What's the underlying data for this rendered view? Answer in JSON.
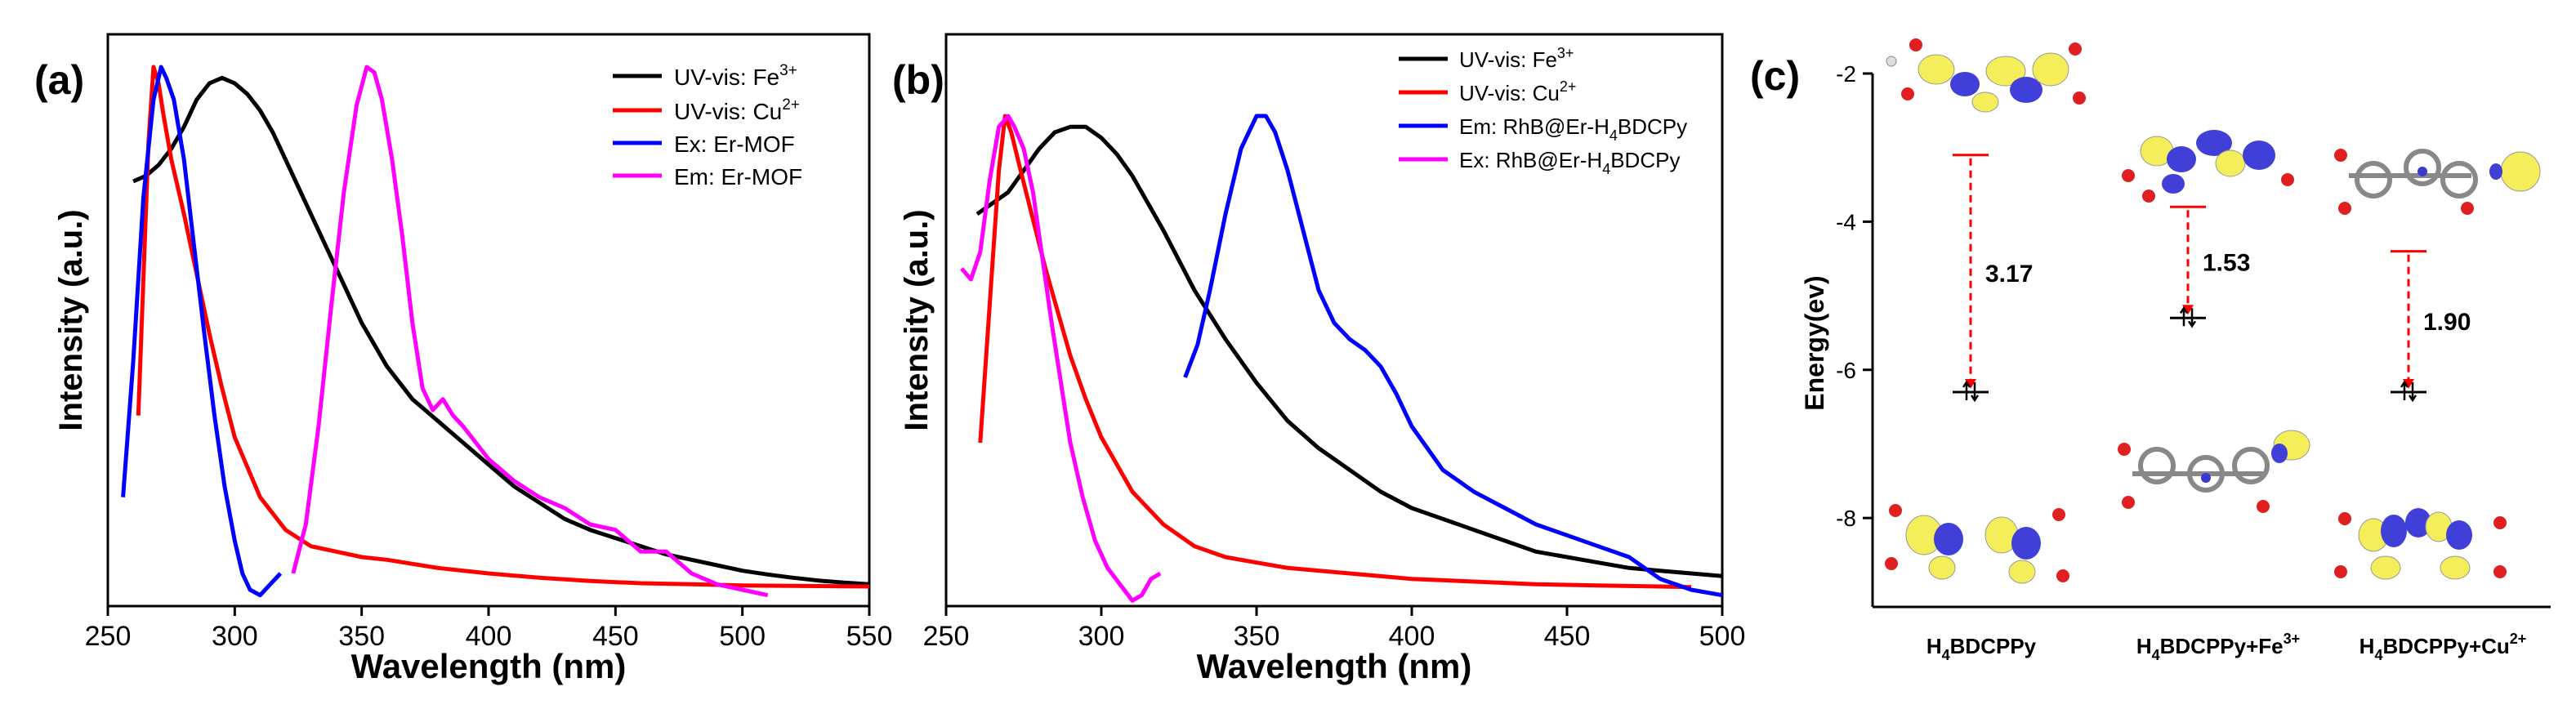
{
  "figure": {
    "panels": [
      {
        "id": "a",
        "tag": "(a)"
      },
      {
        "id": "b",
        "tag": "(b)"
      },
      {
        "id": "c",
        "tag": "(c)"
      }
    ]
  },
  "chart_data": [
    {
      "type": "line",
      "panel": "(a)",
      "xlabel": "Wavelength (nm)",
      "ylabel": "Intensity (a.u.)",
      "xlim": [
        250,
        550
      ],
      "ylim": [
        0,
        1.05
      ],
      "xticks": [
        250,
        300,
        350,
        400,
        450,
        500,
        550
      ],
      "legend_position": "top-right",
      "series": [
        {
          "name": "UV-vis: Fe",
          "sup": "3+",
          "color": "#000000",
          "x": [
            260,
            265,
            270,
            275,
            280,
            285,
            290,
            295,
            300,
            305,
            310,
            315,
            320,
            330,
            340,
            350,
            360,
            370,
            380,
            390,
            400,
            410,
            420,
            430,
            440,
            450,
            460,
            470,
            480,
            490,
            500,
            510,
            520,
            530,
            540,
            550
          ],
          "y": [
            0.78,
            0.79,
            0.81,
            0.84,
            0.88,
            0.93,
            0.96,
            0.97,
            0.96,
            0.94,
            0.91,
            0.87,
            0.82,
            0.72,
            0.62,
            0.52,
            0.44,
            0.38,
            0.34,
            0.3,
            0.26,
            0.22,
            0.19,
            0.16,
            0.14,
            0.125,
            0.11,
            0.095,
            0.085,
            0.075,
            0.065,
            0.058,
            0.052,
            0.047,
            0.043,
            0.04
          ]
        },
        {
          "name": "UV-vis: Cu",
          "sup": "2+",
          "color": "#ff0000",
          "x": [
            262,
            264,
            266,
            268,
            270,
            272,
            275,
            280,
            285,
            290,
            295,
            300,
            310,
            320,
            330,
            340,
            350,
            360,
            380,
            400,
            420,
            440,
            460,
            480,
            500,
            520,
            550
          ],
          "y": [
            0.35,
            0.6,
            0.85,
            0.99,
            0.96,
            0.9,
            0.82,
            0.72,
            0.61,
            0.5,
            0.4,
            0.31,
            0.2,
            0.14,
            0.11,
            0.1,
            0.09,
            0.085,
            0.07,
            0.06,
            0.052,
            0.046,
            0.042,
            0.04,
            0.038,
            0.037,
            0.036
          ]
        },
        {
          "name": "Ex: Er-MOF",
          "sup": "",
          "color": "#0000ff",
          "x": [
            256,
            260,
            264,
            268,
            271,
            273,
            276,
            280,
            284,
            288,
            292,
            296,
            300,
            303,
            306,
            310,
            314,
            318
          ],
          "y": [
            0.2,
            0.45,
            0.75,
            0.93,
            0.99,
            0.97,
            0.93,
            0.82,
            0.66,
            0.5,
            0.35,
            0.22,
            0.12,
            0.06,
            0.03,
            0.02,
            0.04,
            0.06
          ]
        },
        {
          "name": "Em: Er-MOF",
          "sup": "",
          "color": "#ff00ff",
          "x": [
            323,
            328,
            333,
            338,
            343,
            348,
            352,
            355,
            358,
            362,
            366,
            370,
            374,
            378,
            382,
            386,
            390,
            395,
            400,
            410,
            420,
            430,
            440,
            450,
            460,
            470,
            480,
            490,
            500,
            510
          ],
          "y": [
            0.06,
            0.15,
            0.33,
            0.55,
            0.76,
            0.92,
            0.99,
            0.98,
            0.93,
            0.82,
            0.68,
            0.52,
            0.4,
            0.36,
            0.38,
            0.35,
            0.33,
            0.3,
            0.27,
            0.23,
            0.2,
            0.18,
            0.15,
            0.14,
            0.1,
            0.1,
            0.06,
            0.04,
            0.03,
            0.02
          ]
        }
      ]
    },
    {
      "type": "line",
      "panel": "(b)",
      "xlabel": "Wavelength (nm)",
      "ylabel": "Intensity (a.u.)",
      "xlim": [
        250,
        500
      ],
      "ylim": [
        0,
        1.05
      ],
      "xticks": [
        250,
        300,
        350,
        400,
        450,
        500
      ],
      "legend_position": "top-right",
      "series": [
        {
          "name": "UV-vis: Fe",
          "sup": "3+",
          "sub": "",
          "after": "",
          "color": "#000000",
          "x": [
            260,
            265,
            270,
            275,
            280,
            285,
            290,
            295,
            300,
            305,
            310,
            320,
            330,
            340,
            350,
            360,
            370,
            380,
            390,
            400,
            410,
            420,
            430,
            440,
            450,
            460,
            470,
            480,
            490,
            500
          ],
          "y": [
            0.72,
            0.74,
            0.76,
            0.8,
            0.84,
            0.87,
            0.88,
            0.88,
            0.86,
            0.83,
            0.79,
            0.69,
            0.58,
            0.49,
            0.41,
            0.34,
            0.29,
            0.25,
            0.21,
            0.18,
            0.16,
            0.14,
            0.12,
            0.1,
            0.09,
            0.08,
            0.07,
            0.065,
            0.06,
            0.055
          ]
        },
        {
          "name": "UV-vis: Cu",
          "sup": "2+",
          "sub": "",
          "after": "",
          "color": "#ff0000",
          "x": [
            261,
            264,
            267,
            269,
            271,
            274,
            278,
            282,
            286,
            290,
            295,
            300,
            310,
            320,
            330,
            340,
            350,
            360,
            380,
            400,
            420,
            440,
            460,
            480,
            490
          ],
          "y": [
            0.3,
            0.55,
            0.8,
            0.9,
            0.87,
            0.8,
            0.71,
            0.62,
            0.54,
            0.46,
            0.38,
            0.31,
            0.21,
            0.15,
            0.11,
            0.09,
            0.08,
            0.07,
            0.06,
            0.05,
            0.045,
            0.04,
            0.038,
            0.036,
            0.035
          ]
        },
        {
          "name": "Em: RhB@Er-H",
          "sup": "",
          "sub": "4",
          "after": "BDCPy",
          "color": "#0000ff",
          "x": [
            327,
            331,
            335,
            340,
            345,
            350,
            353,
            356,
            360,
            365,
            370,
            375,
            380,
            385,
            390,
            395,
            400,
            410,
            420,
            430,
            440,
            450,
            460,
            470,
            480,
            490,
            500
          ],
          "y": [
            0.42,
            0.48,
            0.58,
            0.72,
            0.84,
            0.9,
            0.9,
            0.87,
            0.8,
            0.69,
            0.58,
            0.52,
            0.49,
            0.47,
            0.44,
            0.39,
            0.33,
            0.25,
            0.21,
            0.18,
            0.15,
            0.13,
            0.11,
            0.09,
            0.05,
            0.03,
            0.02
          ]
        },
        {
          "name": "Ex: RhB@Er-H",
          "sup": "",
          "sub": "4",
          "after": "BDCPy",
          "color": "#ff00ff",
          "x": [
            255,
            258,
            261,
            264,
            267,
            270,
            272,
            275,
            278,
            281,
            284,
            287,
            290,
            294,
            298,
            302,
            306,
            310,
            313,
            316,
            319
          ],
          "y": [
            0.62,
            0.6,
            0.65,
            0.78,
            0.88,
            0.9,
            0.88,
            0.84,
            0.76,
            0.64,
            0.52,
            0.41,
            0.3,
            0.2,
            0.12,
            0.07,
            0.04,
            0.01,
            0.02,
            0.05,
            0.06
          ]
        }
      ]
    },
    {
      "type": "diagram",
      "panel": "(c)",
      "ylabel": "Energy(ev)",
      "ylim": [
        -9.2,
        -2
      ],
      "yticks": [
        -2,
        -4,
        -6,
        -8
      ],
      "columns": [
        {
          "label": "H",
          "sub": "4",
          "after": "BDCPPy",
          "sup": "",
          "lumo": -3.1,
          "homo": -6.3,
          "gap": "3.17"
        },
        {
          "label": "H",
          "sub": "4",
          "after": "BDCPPy+Fe",
          "sup": "3+",
          "lumo": -3.8,
          "homo": -5.3,
          "gap": "1.53"
        },
        {
          "label": "H",
          "sub": "4",
          "after": "BDCPPy+Cu",
          "sup": "2+",
          "lumo": -4.4,
          "homo": -6.3,
          "gap": "1.90"
        }
      ]
    }
  ],
  "colors": {
    "orbital_yellow": "#f4ee5a",
    "orbital_blue": "#4040d8",
    "carbon": "#888888",
    "oxygen": "#e02020",
    "hydrogen": "#f4f4f4",
    "nitrogen": "#3a3ad0",
    "level": "#ff0000"
  }
}
